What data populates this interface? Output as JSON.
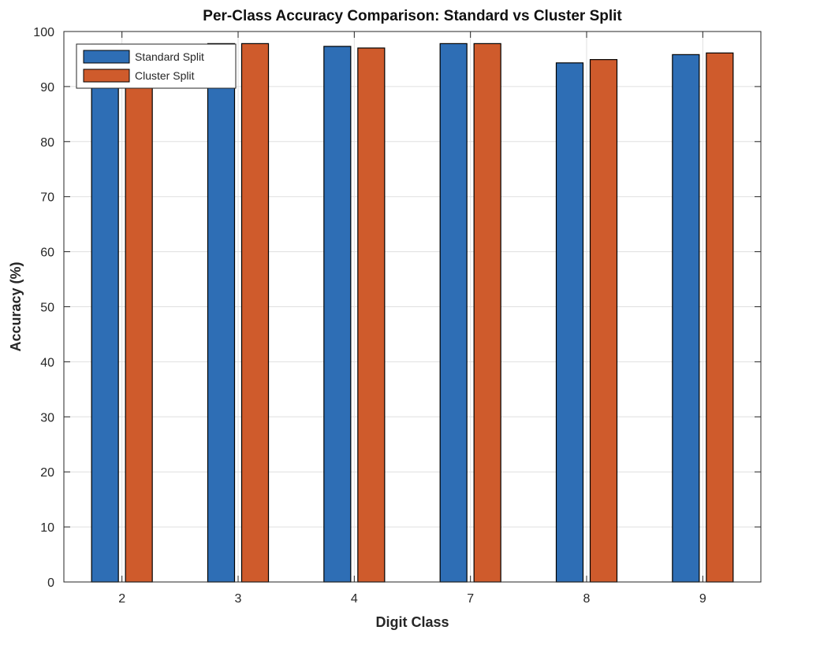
{
  "chart_data": {
    "type": "bar",
    "title": "Per-Class Accuracy Comparison: Standard vs Cluster Split",
    "xlabel": "Digit Class",
    "ylabel": "Accuracy (%)",
    "categories": [
      "2",
      "3",
      "4",
      "7",
      "8",
      "9"
    ],
    "series": [
      {
        "name": "Standard Split",
        "values": [
          97.7,
          97.8,
          97.3,
          97.8,
          94.3,
          95.8
        ]
      },
      {
        "name": "Cluster Split",
        "values": [
          97.4,
          97.8,
          97.0,
          97.8,
          94.9,
          96.1
        ]
      }
    ],
    "ylim": [
      0,
      100
    ],
    "yticks": [
      0,
      10,
      20,
      30,
      40,
      50,
      60,
      70,
      80,
      90,
      100
    ],
    "grid": true,
    "legend_position": "top-left",
    "colors": {
      "series": [
        "#2e6eb5",
        "#cf5b2c"
      ],
      "axis": "#262626",
      "grid": "#dfdfdf",
      "text": "#262626"
    }
  }
}
